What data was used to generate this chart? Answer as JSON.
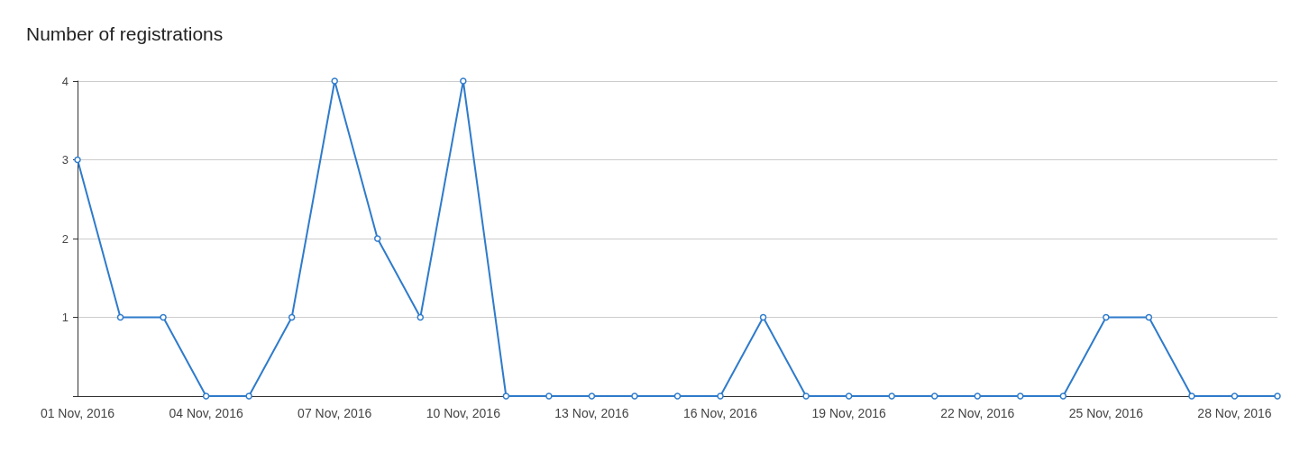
{
  "chart_data": {
    "type": "line",
    "title": "Number of registrations",
    "x": [
      "2016-11-01",
      "2016-11-02",
      "2016-11-03",
      "2016-11-04",
      "2016-11-05",
      "2016-11-06",
      "2016-11-07",
      "2016-11-08",
      "2016-11-09",
      "2016-11-10",
      "2016-11-11",
      "2016-11-12",
      "2016-11-13",
      "2016-11-14",
      "2016-11-15",
      "2016-11-16",
      "2016-11-17",
      "2016-11-18",
      "2016-11-19",
      "2016-11-20",
      "2016-11-21",
      "2016-11-22",
      "2016-11-23",
      "2016-11-24",
      "2016-11-25",
      "2016-11-26",
      "2016-11-27",
      "2016-11-28",
      "2016-11-29"
    ],
    "series": [
      {
        "color": "#2f7bcb",
        "values": [
          3,
          1,
          1,
          0,
          0,
          1,
          4,
          2,
          1,
          4,
          0,
          0,
          0,
          0,
          0,
          0,
          1,
          0,
          0,
          0,
          0,
          0,
          0,
          0,
          1,
          1,
          0,
          0,
          0
        ]
      }
    ],
    "xlim": [
      "2016-11-01",
      "2016-11-29"
    ],
    "xticks": [
      {
        "value": "2016-11-01",
        "label": "01 Nov, 2016"
      },
      {
        "value": "2016-11-04",
        "label": "04 Nov, 2016"
      },
      {
        "value": "2016-11-07",
        "label": "07 Nov, 2016"
      },
      {
        "value": "2016-11-10",
        "label": "10 Nov, 2016"
      },
      {
        "value": "2016-11-13",
        "label": "13 Nov, 2016"
      },
      {
        "value": "2016-11-16",
        "label": "16 Nov, 2016"
      },
      {
        "value": "2016-11-19",
        "label": "19 Nov, 2016"
      },
      {
        "value": "2016-11-22",
        "label": "22 Nov, 2016"
      },
      {
        "value": "2016-11-25",
        "label": "25 Nov, 2016"
      },
      {
        "value": "2016-11-28",
        "label": "28 Nov, 2016"
      }
    ],
    "ylim": [
      0,
      4
    ],
    "yticks": [
      {
        "value": 0,
        "label": null
      },
      1,
      2,
      3,
      4
    ],
    "grid": "y",
    "marker": "circle",
    "line_style": "solid"
  }
}
